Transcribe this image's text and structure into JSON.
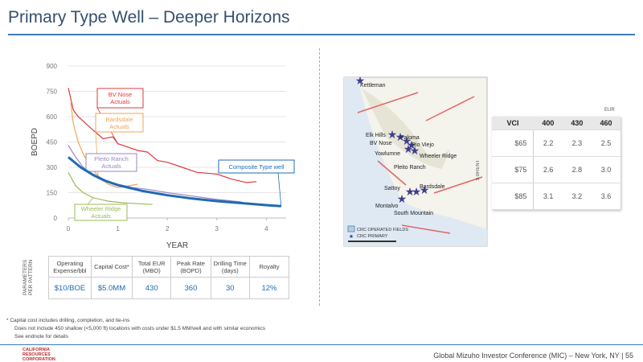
{
  "header": {
    "title": "Primary Type Well – Deeper Horizons"
  },
  "chart_data": {
    "type": "line",
    "xlabel": "YEAR",
    "ylabel": "BOEPD",
    "xlim": [
      0,
      4.4
    ],
    "xticks": [
      0,
      1,
      2,
      3,
      4
    ],
    "ylim": [
      0,
      900
    ],
    "yticks": [
      0,
      150,
      300,
      450,
      600,
      750,
      900
    ],
    "series": [
      {
        "name": "BV Nose Actuals",
        "color": "#e03a3a",
        "x": [
          0,
          0.1,
          0.2,
          0.35,
          0.5,
          0.7,
          0.9,
          1.0,
          1.2,
          1.4,
          1.6,
          1.8,
          2.0,
          2.3,
          2.6,
          3.0,
          3.3,
          3.6,
          3.8
        ],
        "values": [
          770,
          640,
          600,
          560,
          520,
          470,
          480,
          440,
          420,
          400,
          390,
          340,
          330,
          300,
          270,
          260,
          230,
          210,
          215
        ]
      },
      {
        "name": "Bardsdale Actuals",
        "color": "#f0a558",
        "x": [
          0.05,
          0.1,
          0.2,
          0.3,
          0.45,
          0.6,
          0.8,
          1.0,
          1.2,
          1.4
        ],
        "values": [
          680,
          560,
          450,
          380,
          300,
          250,
          200,
          180,
          190,
          200
        ]
      },
      {
        "name": "Pleito Ranch Actuals",
        "color": "#9a86c8",
        "x": [
          0,
          0.15,
          0.3,
          0.5,
          0.7,
          1.0,
          1.3,
          1.6,
          2.0,
          2.5,
          3.0,
          3.5
        ],
        "values": [
          430,
          360,
          300,
          250,
          220,
          200,
          180,
          170,
          150,
          130,
          110,
          95
        ]
      },
      {
        "name": "Wheeler Ridge Actuals",
        "color": "#9bbb59",
        "x": [
          0,
          0.15,
          0.3,
          0.5,
          0.8,
          1.1,
          1.4,
          1.7
        ],
        "values": [
          270,
          190,
          150,
          120,
          100,
          90,
          85,
          80
        ]
      },
      {
        "name": "Composite Type well",
        "color": "#1f6bb5",
        "x": [
          0,
          0.25,
          0.5,
          0.75,
          1.0,
          1.5,
          2.0,
          2.5,
          3.0,
          3.5,
          4.0,
          4.3
        ],
        "values": [
          360,
          300,
          255,
          220,
          195,
          160,
          135,
          115,
          100,
          88,
          76,
          70
        ]
      }
    ]
  },
  "parameters": {
    "side_label": "PARAMETERS PER PATTERN",
    "columns": [
      {
        "label": "Operating Expense/bbl",
        "value": "$10/BOE"
      },
      {
        "label": "Capital Cost*",
        "value": "$5.0MM"
      },
      {
        "label": "Total EUR (MBO)",
        "value": "430"
      },
      {
        "label": "Peak Rate (BOPD)",
        "value": "360"
      },
      {
        "label": "Drilling Time (days)",
        "value": "30"
      },
      {
        "label": "Royalty",
        "value": "12%"
      }
    ]
  },
  "map": {
    "labels": [
      "Kettleman",
      "Elk Hills",
      "BV Nose",
      "Paloma",
      "Rio Viejo",
      "Yowlumne",
      "Wheeler Ridge",
      "Pleito Ranch",
      "Sattoy",
      "Bardsdale",
      "Montalvo",
      "South Mountain"
    ],
    "legend": [
      "CRC OPERATED FIELDS",
      "CRC PRIMARY"
    ]
  },
  "eur_table": {
    "caption": "EUR",
    "side_label": "$ BRENT",
    "header": [
      "VCI",
      "400",
      "430",
      "460"
    ],
    "rows": [
      [
        "$65",
        "2.2",
        "2.3",
        "2.5"
      ],
      [
        "$75",
        "2.6",
        "2.8",
        "3.0"
      ],
      [
        "$85",
        "3.1",
        "3.2",
        "3.6"
      ]
    ]
  },
  "footnotes": [
    "* Capital cost includes drilling, completion, and tie-ins",
    "Does not include 450 shallow (<5,000 ft) locations with costs under $1.5 MM/well and with similar economics",
    "See endnote for details"
  ],
  "footer": {
    "text": "Global Mizuho Investor Conference (MIC) – New York, NY",
    "page": "| 55",
    "logo": "CALIFORNIA RESOURCES CORPORATION"
  }
}
